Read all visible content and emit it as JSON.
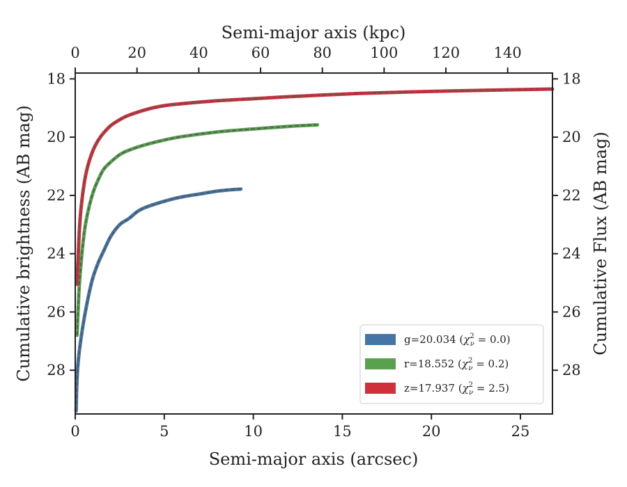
{
  "chart_data": {
    "type": "line",
    "xlabel": "Semi-major axis (arcsec)",
    "ylabel": "Cumulative brightness (AB mag)",
    "x2label": "Semi-major axis (kpc)",
    "y2label": "Cumulative Flux (AB mag)",
    "xlim": [
      0,
      26.8
    ],
    "ylim": [
      29.5,
      17.8
    ],
    "x2lim": [
      0,
      154.5
    ],
    "y_inverted": true,
    "xticks": [
      0,
      5,
      10,
      15,
      20,
      25
    ],
    "yticks": [
      18,
      20,
      22,
      24,
      26,
      28
    ],
    "x2ticks": [
      0,
      20,
      40,
      60,
      80,
      100,
      120,
      140
    ],
    "grid": false,
    "legend_position": "lower-right",
    "model_line_style": "dashed gray",
    "series": [
      {
        "name": "g=20.034 (χ²ν = 0.0)",
        "name_text": "g=20.034 (",
        "chi_value": " = 0.0)",
        "color": "#4575a4",
        "x": [
          0.05,
          0.1,
          0.2,
          0.4,
          0.6,
          0.8,
          1.0,
          1.3,
          1.6,
          2.0,
          2.5,
          3.0,
          3.5,
          4.0,
          5.0,
          6.0,
          7.0,
          8.0,
          9.3
        ],
        "y": [
          29.4,
          28.3,
          27.5,
          26.6,
          25.9,
          25.3,
          24.8,
          24.3,
          23.9,
          23.4,
          23.0,
          22.8,
          22.55,
          22.4,
          22.2,
          22.05,
          21.95,
          21.85,
          21.78
        ]
      },
      {
        "name": "r=18.552 (χ²ν = 0.2)",
        "name_text": "r=18.552 (",
        "chi_value": " = 0.2)",
        "color": "#59a14f",
        "x": [
          0.1,
          0.2,
          0.3,
          0.5,
          0.7,
          1.0,
          1.3,
          1.6,
          2.0,
          2.5,
          3.0,
          4.0,
          5.0,
          6.0,
          8.0,
          10.0,
          12.0,
          13.6
        ],
        "y": [
          26.8,
          25.4,
          24.5,
          23.3,
          22.6,
          21.9,
          21.45,
          21.1,
          20.85,
          20.6,
          20.45,
          20.25,
          20.1,
          19.98,
          19.82,
          19.72,
          19.63,
          19.58
        ]
      },
      {
        "name": "z=17.937 (χ²ν = 2.5)",
        "name_text": "z=17.937 (",
        "chi_value": " = 2.5)",
        "color": "#d0303a",
        "x": [
          0.1,
          0.2,
          0.3,
          0.5,
          0.7,
          1.0,
          1.3,
          1.6,
          2.0,
          2.5,
          3.0,
          4.0,
          5.0,
          6.0,
          8.0,
          10.0,
          13.0,
          16.0,
          20.0,
          24.0,
          26.8
        ],
        "y": [
          25.05,
          23.6,
          22.6,
          21.6,
          21.0,
          20.45,
          20.1,
          19.85,
          19.6,
          19.4,
          19.25,
          19.05,
          18.92,
          18.85,
          18.75,
          18.68,
          18.58,
          18.5,
          18.43,
          18.38,
          18.35
        ]
      }
    ]
  }
}
